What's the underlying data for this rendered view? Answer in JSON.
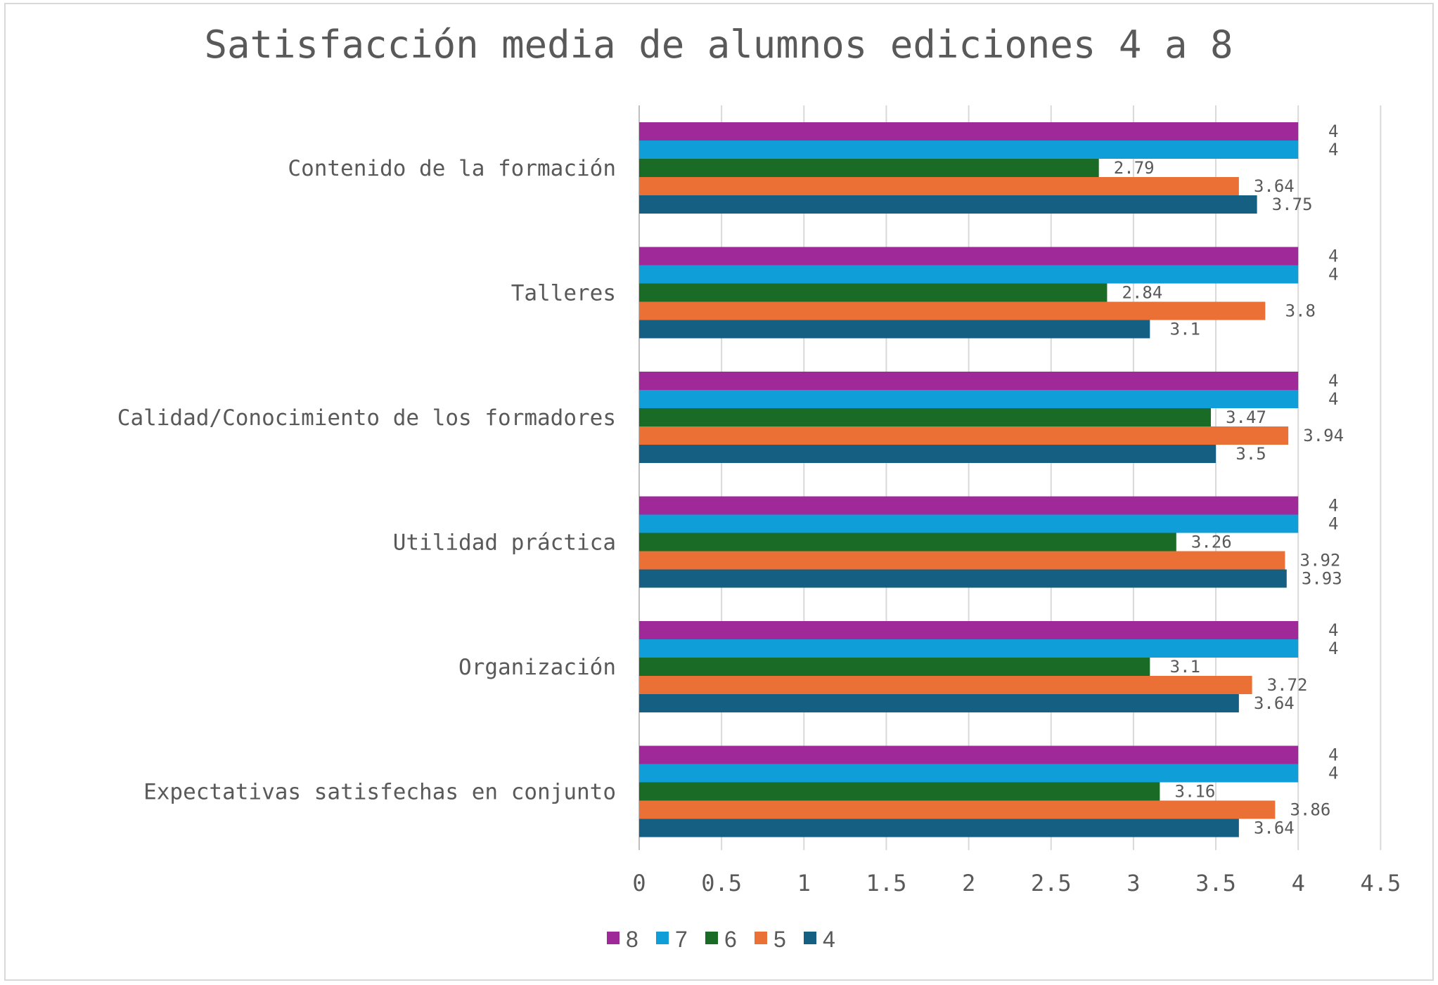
{
  "chart_data": {
    "type": "bar",
    "orientation": "horizontal",
    "title": "Satisfacción media de alumnos ediciones 4 a 8",
    "xlabel": "",
    "ylabel": "",
    "xlim": [
      0,
      4.5
    ],
    "ticks": [
      "0",
      "0.5",
      "1",
      "1.5",
      "2",
      "2.5",
      "3",
      "3.5",
      "4",
      "4.5"
    ],
    "tick_values": [
      0,
      0.5,
      1,
      1.5,
      2,
      2.5,
      3,
      3.5,
      4,
      4.5
    ],
    "grid": true,
    "legend_position": "bottom",
    "categories": [
      "Contenido de la formación",
      "Talleres",
      "Calidad/Conocimiento de los formadores",
      "Utilidad práctica",
      "Organización",
      "Expectativas satisfechas en conjunto"
    ],
    "series": [
      {
        "name": "8",
        "color": "#a0299a",
        "values": [
          4,
          4,
          4,
          4,
          4,
          4
        ],
        "labels": [
          "4",
          "4",
          "4",
          "4",
          "4",
          "4"
        ]
      },
      {
        "name": "7",
        "color": "#0f9ed8",
        "values": [
          4,
          4,
          4,
          4,
          4,
          4
        ],
        "labels": [
          "4",
          "4",
          "4",
          "4",
          "4",
          "4"
        ]
      },
      {
        "name": "6",
        "color": "#1a6b25",
        "values": [
          2.79,
          2.84,
          3.47,
          3.26,
          3.1,
          3.16
        ],
        "labels": [
          "2.79",
          "2.84",
          "3.47",
          "3.26",
          "3.1",
          "3.16"
        ]
      },
      {
        "name": "5",
        "color": "#ea7035",
        "values": [
          3.64,
          3.8,
          3.94,
          3.92,
          3.72,
          3.86
        ],
        "labels": [
          "3.64",
          "3.8",
          "3.94",
          "3.92",
          "3.72",
          "3.86"
        ]
      },
      {
        "name": "4",
        "color": "#156082",
        "values": [
          3.75,
          3.1,
          3.5,
          3.93,
          3.64,
          3.64
        ],
        "labels": [
          "3.75",
          "3.1",
          "3.5",
          "3.93",
          "3.64",
          "3.64"
        ]
      }
    ]
  }
}
